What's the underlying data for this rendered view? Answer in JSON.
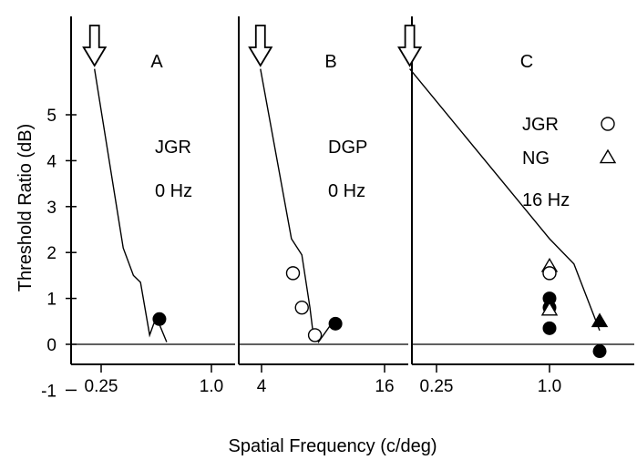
{
  "chart_data": [
    {
      "type": "scatter",
      "panel_label": "A",
      "annotations": [
        "JGR",
        "0 Hz"
      ],
      "xticks": [
        "0.25",
        "1.0"
      ],
      "xlim": [
        0.22,
        1.25
      ],
      "ylim": [
        -1,
        7
      ],
      "xscale": "log",
      "arrow_x": 0.23,
      "curve": [
        {
          "x": 0.23,
          "y": 6.0
        },
        {
          "x": 0.33,
          "y": 2.1
        },
        {
          "x": 0.375,
          "y": 1.5
        },
        {
          "x": 0.41,
          "y": 1.35
        },
        {
          "x": 0.46,
          "y": 0.2
        },
        {
          "x": 0.5,
          "y": 0.6
        },
        {
          "x": 0.57,
          "y": 0.05
        }
      ],
      "points": [
        {
          "x": 0.52,
          "y": 0.55,
          "marker": "filled-circle"
        }
      ]
    },
    {
      "type": "scatter",
      "panel_label": "B",
      "annotations": [
        "DGP",
        "0 Hz"
      ],
      "xticks": [
        "4",
        "16"
      ],
      "xlim": [
        3.6,
        20
      ],
      "ylim": [
        -1,
        7
      ],
      "xscale": "log",
      "arrow_x": 3.95,
      "curve": [
        {
          "x": 3.95,
          "y": 6.0
        },
        {
          "x": 5.6,
          "y": 2.3
        },
        {
          "x": 6.3,
          "y": 1.95
        },
        {
          "x": 6.9,
          "y": 0.8
        },
        {
          "x": 7.1,
          "y": 0.35
        },
        {
          "x": 7.6,
          "y": 0.05
        },
        {
          "x": 8.8,
          "y": 0.45
        }
      ],
      "points": [
        {
          "x": 5.7,
          "y": 1.55,
          "marker": "open-circle"
        },
        {
          "x": 6.3,
          "y": 0.8,
          "marker": "open-circle"
        },
        {
          "x": 7.3,
          "y": 0.2,
          "marker": "open-circle"
        },
        {
          "x": 9.2,
          "y": 0.45,
          "marker": "filled-circle"
        }
      ]
    },
    {
      "type": "scatter",
      "panel_label": "C",
      "annotations": [
        "16 Hz"
      ],
      "legend": [
        {
          "name": "JGR",
          "marker": "open-circle"
        },
        {
          "name": "NG",
          "marker": "open-triangle"
        }
      ],
      "xticks": [
        "0.25",
        "1.0"
      ],
      "xlim": [
        0.14,
        2.1
      ],
      "ylim": [
        -1,
        7
      ],
      "xscale": "log",
      "arrow_x": 0.18,
      "curve": [
        {
          "x": 0.18,
          "y": 6.0
        },
        {
          "x": 1.0,
          "y": 2.3
        },
        {
          "x": 1.35,
          "y": 1.75
        },
        {
          "x": 1.85,
          "y": 0.3
        }
      ],
      "points": [
        {
          "x": 1.0,
          "y": 1.7,
          "marker": "open-triangle"
        },
        {
          "x": 1.0,
          "y": 1.55,
          "marker": "open-circle"
        },
        {
          "x": 1.0,
          "y": 1.0,
          "marker": "filled-circle"
        },
        {
          "x": 1.0,
          "y": 0.8,
          "marker": "filled-circle"
        },
        {
          "x": 1.0,
          "y": 0.75,
          "marker": "open-triangle"
        },
        {
          "x": 1.0,
          "y": 0.35,
          "marker": "filled-circle"
        },
        {
          "x": 1.85,
          "y": 0.5,
          "marker": "filled-triangle"
        },
        {
          "x": 1.85,
          "y": -0.15,
          "marker": "filled-circle"
        }
      ]
    }
  ],
  "shared": {
    "ylabel": "Threshold Ratio (dB)",
    "xlabel": "Spatial Frequency (c/deg)",
    "yticks": [
      "-1",
      "0",
      "1",
      "2",
      "3",
      "4",
      "5"
    ]
  },
  "colors": {
    "ink": "#000000",
    "paper": "#ffffff"
  }
}
